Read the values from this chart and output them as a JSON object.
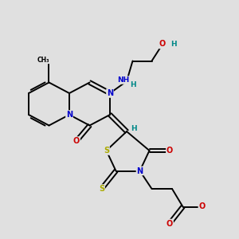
{
  "background_color": "#e0e0e0",
  "atom_colors": {
    "C": "#000000",
    "N": "#0000cc",
    "O": "#cc0000",
    "S": "#aaaa00",
    "H": "#008888"
  },
  "bond_color": "#000000",
  "bond_width": 1.4,
  "figsize": [
    3.0,
    3.0
  ],
  "dpi": 100
}
